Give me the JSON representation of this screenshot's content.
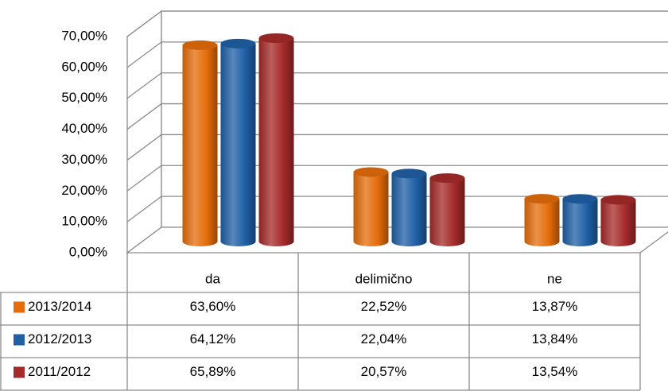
{
  "chart_data": {
    "type": "bar",
    "categories": [
      "da",
      "delimično",
      "ne"
    ],
    "series": [
      {
        "name": "2013/2014",
        "values": [
          63.6,
          22.52,
          13.87
        ],
        "labels": [
          "63,60%",
          "22,52%",
          "13,87%"
        ],
        "color": "#E46C0A"
      },
      {
        "name": "2012/2013",
        "values": [
          64.12,
          22.04,
          13.84
        ],
        "labels": [
          "64,12%",
          "22,04%",
          "13,84%"
        ],
        "color": "#1F5FA6"
      },
      {
        "name": "2011/2012",
        "values": [
          65.89,
          20.57,
          13.54
        ],
        "labels": [
          "65,89%",
          "20,57%",
          "13,54%"
        ],
        "color": "#A52A2A"
      }
    ],
    "yticks": [
      "0,00%",
      "10,00%",
      "20,00%",
      "30,00%",
      "40,00%",
      "50,00%",
      "60,00%",
      "70,00%"
    ],
    "ylim": [
      0,
      70
    ],
    "grid": true,
    "data_table": true,
    "style": "3d-cylinder"
  }
}
